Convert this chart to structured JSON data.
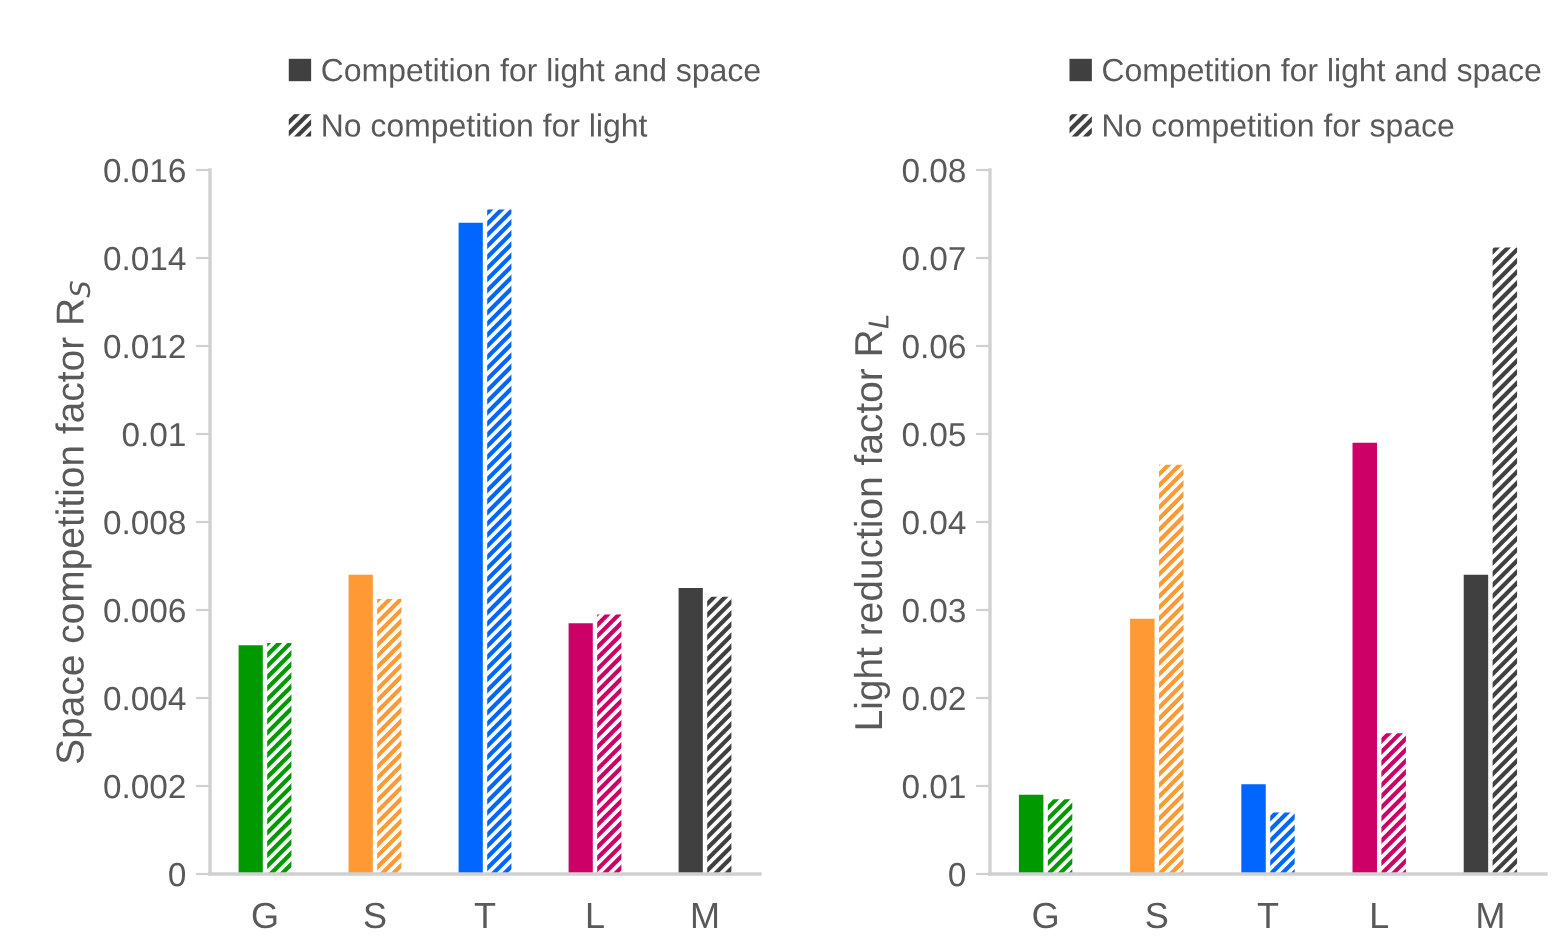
{
  "chart_data": [
    {
      "type": "bar",
      "ylabel": "Space competition factor R$_{S}$",
      "categories": [
        "G",
        "S",
        "T",
        "L",
        "M"
      ],
      "ylim": [
        0,
        0.016
      ],
      "yticks": [
        {
          "value": 0,
          "label": "0"
        },
        {
          "value": 0.002,
          "label": "0.002"
        },
        {
          "value": 0.004,
          "label": "0.004"
        },
        {
          "value": 0.006,
          "label": "0.006"
        },
        {
          "value": 0.008,
          "label": "0.008"
        },
        {
          "value": 0.01,
          "label": "0.01"
        },
        {
          "value": 0.012,
          "label": "0.012"
        },
        {
          "value": 0.014,
          "label": "0.014"
        },
        {
          "value": 0.016,
          "label": "0.016"
        }
      ],
      "grid": false,
      "legend": "top",
      "series": [
        {
          "name": "Competition for light and space",
          "color": "#404040",
          "colors": [
            "#009900",
            "#ff9933",
            "#0066ff",
            "#cc0066",
            "#404040"
          ],
          "values": [
            0.0052,
            0.0068,
            0.0148,
            0.0057,
            0.0065
          ]
        },
        {
          "name": "No competition for light",
          "color": "#404040",
          "colors": [
            "#009900",
            "#ff9933",
            "#0066ff",
            "#cc0066",
            "#404040"
          ],
          "values": [
            0.00525,
            0.00625,
            0.0151,
            0.0059,
            0.0063
          ]
        }
      ]
    },
    {
      "type": "bar",
      "ylabel": "Light reduction factor R$_{L}$",
      "categories": [
        "G",
        "S",
        "T",
        "L",
        "M"
      ],
      "ylim": [
        0,
        0.08
      ],
      "yticks": [
        {
          "value": 0,
          "label": "0"
        },
        {
          "value": 0.01,
          "label": "0.01"
        },
        {
          "value": 0.02,
          "label": "0.02"
        },
        {
          "value": 0.03,
          "label": "0.03"
        },
        {
          "value": 0.04,
          "label": "0.04"
        },
        {
          "value": 0.05,
          "label": "0.05"
        },
        {
          "value": 0.06,
          "label": "0.06"
        },
        {
          "value": 0.07,
          "label": "0.07"
        },
        {
          "value": 0.08,
          "label": "0.08"
        }
      ],
      "grid": false,
      "legend": "top",
      "series": [
        {
          "name": "Competition for light and space",
          "color": "#404040",
          "colors": [
            "#009900",
            "#ff9933",
            "#0066ff",
            "#cc0066",
            "#404040"
          ],
          "values": [
            0.009,
            0.029,
            0.0102,
            0.049,
            0.034
          ]
        },
        {
          "name": "No competition for space",
          "color": "#404040",
          "colors": [
            "#009900",
            "#ff9933",
            "#0066ff",
            "#cc0066",
            "#404040"
          ],
          "values": [
            0.0085,
            0.0465,
            0.007,
            0.016,
            0.0712
          ]
        }
      ]
    }
  ]
}
